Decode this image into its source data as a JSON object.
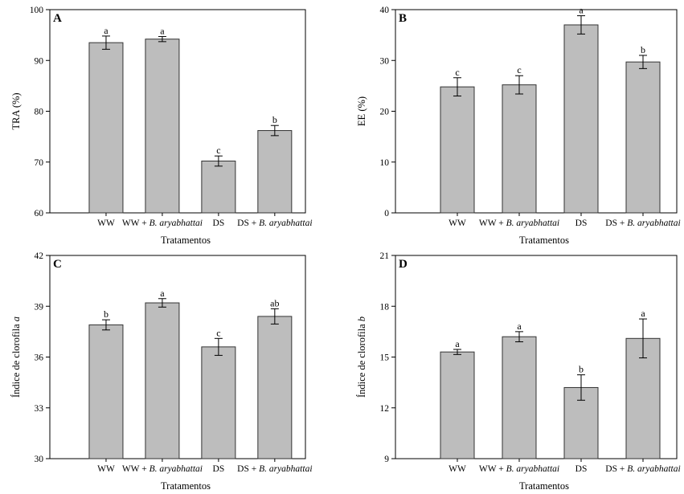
{
  "chart_data": [
    {
      "type": "bar",
      "panel_label": "A",
      "categories": [
        "WW",
        "WW + B. aryabhattai",
        "DS",
        "DS + B. aryabhattai"
      ],
      "category_prefix": [
        "WW",
        "WW + ",
        "DS",
        "DS + "
      ],
      "category_italic": [
        "",
        "B. aryabhattai",
        "",
        "B. aryabhattai"
      ],
      "values": [
        93.5,
        94.2,
        70.2,
        76.2
      ],
      "errors": [
        1.3,
        0.5,
        1.0,
        1.0
      ],
      "letters": [
        "a",
        "a",
        "c",
        "b"
      ],
      "xlabel": "Tratamentos",
      "ylabel": "TRA (%)",
      "ylabel_italic": "",
      "ylim": [
        60,
        100
      ],
      "yticks": [
        60,
        70,
        80,
        90,
        100
      ]
    },
    {
      "type": "bar",
      "panel_label": "B",
      "categories": [
        "WW",
        "WW + B. aryabhattai",
        "DS",
        "DS + B. aryabhattai"
      ],
      "category_prefix": [
        "WW",
        "WW + ",
        "DS",
        "DS + "
      ],
      "category_italic": [
        "",
        "B. aryabhattai",
        "",
        "B. aryabhattai"
      ],
      "values": [
        24.8,
        25.2,
        37.0,
        29.7
      ],
      "errors": [
        1.8,
        1.8,
        1.8,
        1.3
      ],
      "letters": [
        "c",
        "c",
        "a",
        "b"
      ],
      "xlabel": "Tratamentos",
      "ylabel": "EE (%)",
      "ylabel_italic": "",
      "ylim": [
        0,
        40
      ],
      "yticks": [
        0,
        10,
        20,
        30,
        40
      ]
    },
    {
      "type": "bar",
      "panel_label": "C",
      "categories": [
        "WW",
        "WW + B. aryabhattai",
        "DS",
        "DS + B. aryabhattai"
      ],
      "category_prefix": [
        "WW",
        "WW + ",
        "DS",
        "DS + "
      ],
      "category_italic": [
        "",
        "B. aryabhattai",
        "",
        "B. aryabhattai"
      ],
      "values": [
        37.9,
        39.2,
        36.6,
        38.4
      ],
      "errors": [
        0.3,
        0.25,
        0.5,
        0.45
      ],
      "letters": [
        "b",
        "a",
        "c",
        "ab"
      ],
      "xlabel": "Tratamentos",
      "ylabel": "Índice de clorofila ",
      "ylabel_italic": "a",
      "ylim": [
        30,
        42
      ],
      "yticks": [
        30,
        33,
        36,
        39,
        42
      ]
    },
    {
      "type": "bar",
      "panel_label": "D",
      "categories": [
        "WW",
        "WW + B. aryabhattai",
        "DS",
        "DS + B. aryabhattai"
      ],
      "category_prefix": [
        "WW",
        "WW + ",
        "DS",
        "DS + "
      ],
      "category_italic": [
        "",
        "B. aryabhattai",
        "",
        "B. aryabhattai"
      ],
      "values": [
        15.3,
        16.2,
        13.2,
        16.1
      ],
      "errors": [
        0.15,
        0.3,
        0.75,
        1.15
      ],
      "letters": [
        "a",
        "a",
        "b",
        "a"
      ],
      "xlabel": "Tratamentos",
      "ylabel": "Índice de clorofila ",
      "ylabel_italic": "b",
      "ylim": [
        9,
        21
      ],
      "yticks": [
        9,
        12,
        15,
        18,
        21
      ]
    }
  ]
}
